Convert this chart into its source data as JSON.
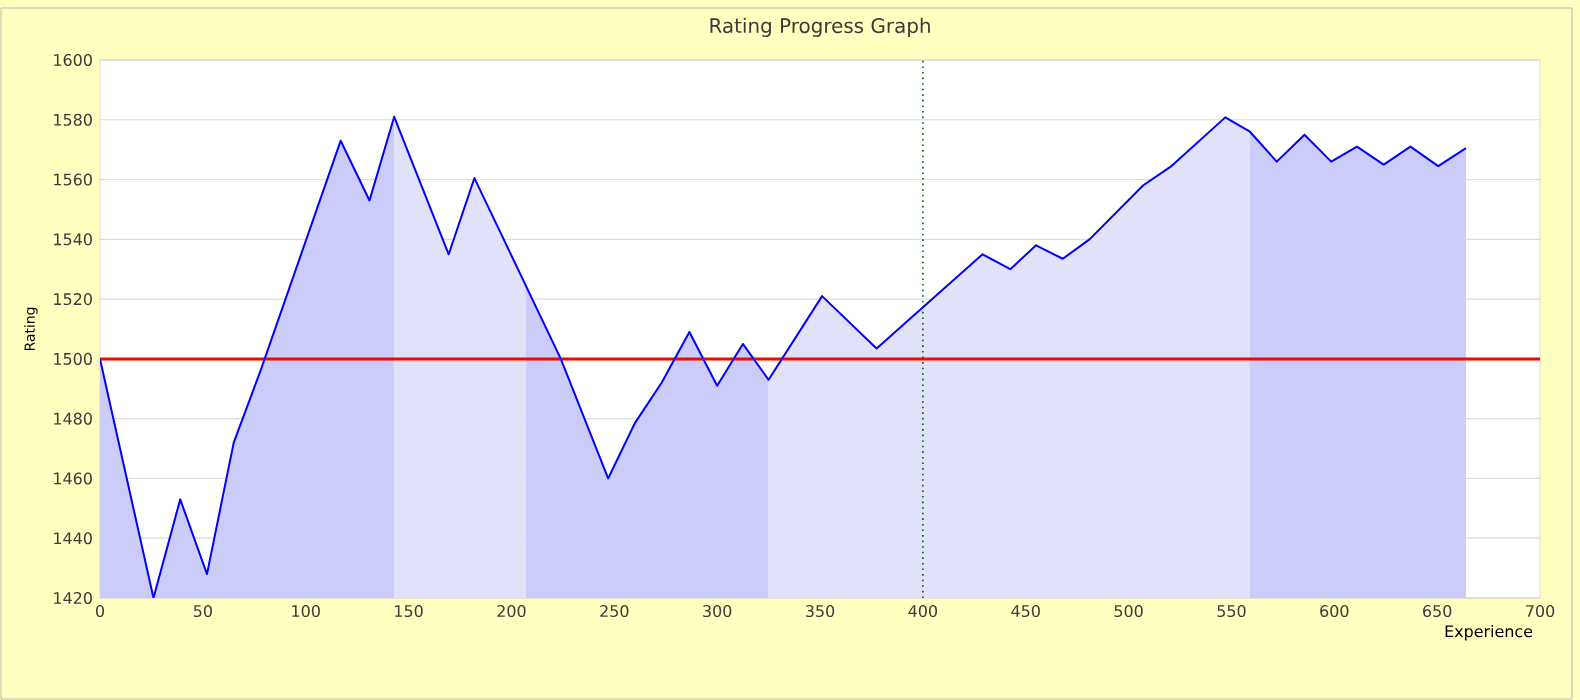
{
  "chart_data": {
    "type": "line",
    "title": "Rating Progress Graph",
    "xlabel": "Experience",
    "ylabel": "Rating",
    "xlim": [
      0,
      700
    ],
    "xticks": [
      0,
      50,
      100,
      150,
      200,
      250,
      300,
      350,
      400,
      450,
      500,
      550,
      600,
      650,
      700
    ],
    "ylim": [
      1420,
      1600
    ],
    "yticks": [
      1420,
      1440,
      1460,
      1480,
      1500,
      1520,
      1540,
      1560,
      1580,
      1600
    ],
    "grid": "y",
    "marker": "none",
    "line_style": "solid",
    "series": [
      {
        "type": "area",
        "color": "#ccccfa",
        "x": [
          0,
          26,
          39,
          52,
          65,
          78,
          117,
          131,
          143
        ],
        "values": [
          1500,
          1420,
          1453,
          1428,
          1472,
          1496,
          1573,
          1553,
          1581
        ]
      },
      {
        "type": "area",
        "color": "#e1e1fa",
        "x": [
          143,
          169.5,
          182,
          207
        ],
        "values": [
          1581,
          1535,
          1560.5,
          1524.5
        ]
      },
      {
        "type": "area",
        "color": "#ccccfa",
        "x": [
          207,
          224,
          247,
          260,
          273,
          286.5,
          300,
          312.5,
          325
        ],
        "values": [
          1524.5,
          1500,
          1460,
          1478.5,
          1492,
          1509,
          1491,
          1505,
          1493
        ]
      },
      {
        "type": "area",
        "color": "#e1e1fa",
        "x": [
          325,
          351,
          377.5,
          429,
          442.5,
          455,
          468,
          481,
          507,
          521,
          547,
          559
        ],
        "values": [
          1493,
          1521,
          1503.5,
          1535,
          1530,
          1538,
          1533.5,
          1540,
          1558,
          1564.6,
          1580.8,
          1576
        ]
      },
      {
        "type": "area",
        "color": "#ccccfa",
        "x": [
          559,
          572,
          585.5,
          598.5,
          611,
          624,
          637,
          650.5,
          664
        ],
        "values": [
          1576,
          1566,
          1575,
          1566,
          1571,
          1565,
          1571,
          1564.5,
          1570.5
        ]
      },
      {
        "color": "#0000ff",
        "x": [
          0,
          26,
          39,
          52,
          65,
          78,
          117,
          131,
          143,
          169.5,
          182,
          224,
          247,
          260,
          273,
          286.5,
          300,
          312.5,
          325,
          351,
          377.5,
          429,
          442.5,
          455,
          468,
          481,
          507,
          521,
          547,
          559,
          572,
          585.5,
          598.5,
          611,
          624,
          637,
          650.5,
          664
        ],
        "values": [
          1500,
          1420,
          1453,
          1428,
          1472,
          1496,
          1573,
          1553,
          1581,
          1535,
          1560.5,
          1500,
          1460,
          1478.5,
          1492,
          1509,
          1491,
          1505,
          1493,
          1521,
          1503.5,
          1535,
          1530,
          1538,
          1533.5,
          1540,
          1558,
          1564.6,
          1580.8,
          1576,
          1566,
          1575,
          1566,
          1571,
          1565,
          1571,
          1564.5,
          1570.5
        ]
      }
    ],
    "ref_lines": [
      {
        "axis": "y",
        "value": 1500,
        "color": "#ff0000"
      },
      {
        "axis": "x",
        "value": 400,
        "color": "#006600",
        "line_style": "dotted"
      }
    ]
  }
}
